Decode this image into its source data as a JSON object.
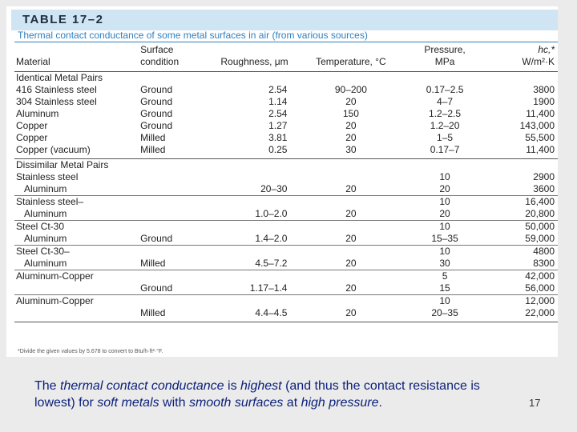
{
  "table": {
    "number": "TABLE 17–2",
    "caption": "Thermal contact conductance of some metal surfaces in air (from various sources)",
    "headers": {
      "material": "Material",
      "surface_line1": "Surface",
      "surface_line2": "condition",
      "roughness": "Roughness, μm",
      "temperature": "Temperature, °C",
      "pressure_line1": "Pressure,",
      "pressure_line2": "MPa",
      "hc_line1": "hc,*",
      "hc_line2": "W/m²·K"
    },
    "identical_title": "Identical Metal Pairs",
    "identical_rows": [
      {
        "material": "416 Stainless steel",
        "surface": "Ground",
        "roughness": "2.54",
        "temperature": "90–200",
        "pressure": "0.17–2.5",
        "hc": "3800"
      },
      {
        "material": "304 Stainless steel",
        "surface": "Ground",
        "roughness": "1.14",
        "temperature": "20",
        "pressure": "4–7",
        "hc": "1900"
      },
      {
        "material": "Aluminum",
        "surface": "Ground",
        "roughness": "2.54",
        "temperature": "150",
        "pressure": "1.2–2.5",
        "hc": "11,400"
      },
      {
        "material": "Copper",
        "surface": "Ground",
        "roughness": "1.27",
        "temperature": "20",
        "pressure": "1.2–20",
        "hc": "143,000"
      },
      {
        "material": "Copper",
        "surface": "Milled",
        "roughness": "3.81",
        "temperature": "20",
        "pressure": "1–5",
        "hc": "55,500"
      },
      {
        "material": "Copper (vacuum)",
        "surface": "Milled",
        "roughness": "0.25",
        "temperature": "30",
        "pressure": "0.17–7",
        "hc": "11,400"
      }
    ],
    "dissimilar_title": "Dissimilar Metal Pairs",
    "dissimilar_groups": [
      {
        "material_line1": "Stainless steel",
        "material_line2": "Aluminum",
        "surface": "",
        "roughness": "20–30",
        "temperature": "20",
        "pressure1": "10",
        "pressure2": "20",
        "hc1": "2900",
        "hc2": "3600"
      },
      {
        "material_line1": "Stainless steel–",
        "material_line2": "Aluminum",
        "surface": "",
        "roughness": "1.0–2.0",
        "temperature": "20",
        "pressure1": "10",
        "pressure2": "20",
        "hc1": "16,400",
        "hc2": "20,800"
      },
      {
        "material_line1": "Steel Ct-30",
        "material_line2": "Aluminum",
        "surface": "Ground",
        "roughness": "1.4–2.0",
        "temperature": "20",
        "pressure1": "10",
        "pressure2": "15–35",
        "hc1": "50,000",
        "hc2": "59,000"
      },
      {
        "material_line1": "Steel Ct-30–",
        "material_line2": "Aluminum",
        "surface": "Milled",
        "roughness": "4.5–7.2",
        "temperature": "20",
        "pressure1": "10",
        "pressure2": "30",
        "hc1": "4800",
        "hc2": "8300"
      },
      {
        "material_line1": "Aluminum-Copper",
        "material_line2": "",
        "surface": "Ground",
        "roughness": "1.17–1.4",
        "temperature": "20",
        "pressure1": "5",
        "pressure2": "15",
        "hc1": "42,000",
        "hc2": "56,000"
      },
      {
        "material_line1": "Aluminum-Copper",
        "material_line2": "",
        "surface": "Milled",
        "roughness": "4.4–4.5",
        "temperature": "20",
        "pressure1": "10",
        "pressure2": "20–35",
        "hc1": "12,000",
        "hc2": "22,000"
      }
    ],
    "footnote": "*Divide the given values by 5.678 to convert to Btu/h·ft²·°F."
  },
  "footer": {
    "t1": "The ",
    "t2": "thermal contact conductance",
    "t3": " is ",
    "t4": "highest",
    "t5": " (and thus the contact resistance is lowest) for ",
    "t6": "soft metals",
    "t7": " with ",
    "t8": "smooth surfaces",
    "t9": " at ",
    "t10": "high pressure",
    "t11": "."
  },
  "page_number": "17"
}
